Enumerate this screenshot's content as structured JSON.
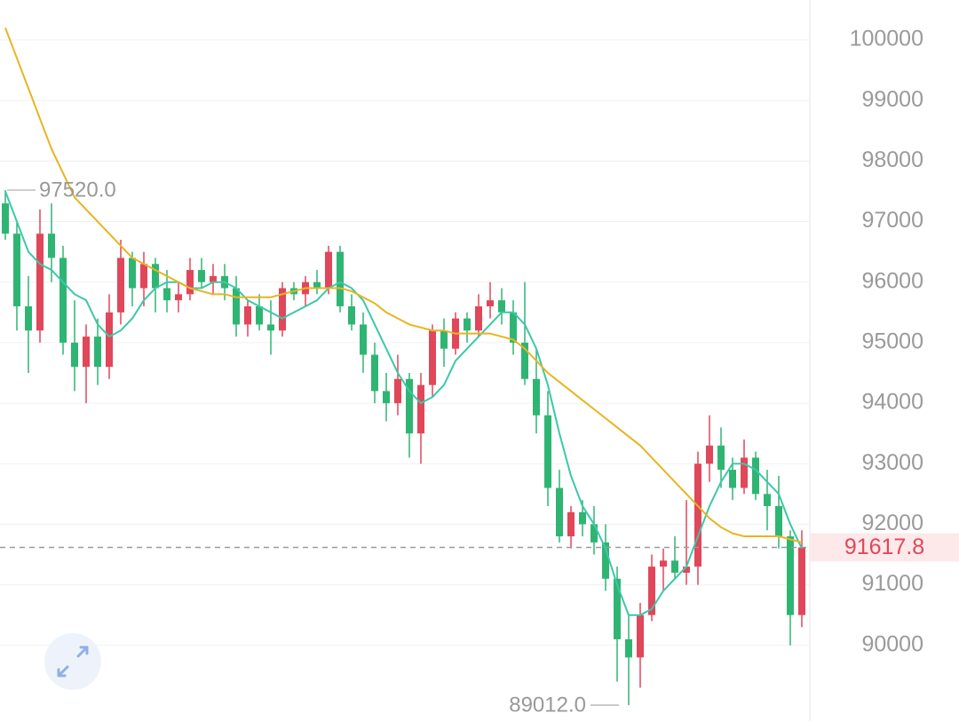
{
  "chart_data": {
    "type": "candlestick",
    "ylim": [
      88750,
      100660
    ],
    "yticks": [
      90000,
      91000,
      92000,
      93000,
      94000,
      95000,
      96000,
      97000,
      98000,
      99000,
      100000
    ],
    "grid": true,
    "up_color": "#e0475a",
    "down_color": "#2fb573",
    "candles": [
      {
        "open": 97300,
        "high": 97520,
        "low": 96700,
        "close": 96800
      },
      {
        "open": 96800,
        "high": 97000,
        "low": 95200,
        "close": 95600
      },
      {
        "open": 95600,
        "high": 96100,
        "low": 94500,
        "close": 95200
      },
      {
        "open": 95200,
        "high": 97200,
        "low": 95000,
        "close": 96800
      },
      {
        "open": 96800,
        "high": 97300,
        "low": 96000,
        "close": 96400
      },
      {
        "open": 96400,
        "high": 96600,
        "low": 94800,
        "close": 95000
      },
      {
        "open": 95000,
        "high": 95700,
        "low": 94200,
        "close": 94600
      },
      {
        "open": 94600,
        "high": 95300,
        "low": 94000,
        "close": 95100
      },
      {
        "open": 95100,
        "high": 95400,
        "low": 94300,
        "close": 94600
      },
      {
        "open": 94600,
        "high": 95800,
        "low": 94400,
        "close": 95500
      },
      {
        "open": 95500,
        "high": 96700,
        "low": 95300,
        "close": 96400
      },
      {
        "open": 96400,
        "high": 96500,
        "low": 95600,
        "close": 95900
      },
      {
        "open": 95900,
        "high": 96500,
        "low": 95600,
        "close": 96300
      },
      {
        "open": 96300,
        "high": 96400,
        "low": 95500,
        "close": 95900
      },
      {
        "open": 95900,
        "high": 96200,
        "low": 95500,
        "close": 95700
      },
      {
        "open": 95700,
        "high": 96000,
        "low": 95500,
        "close": 95800
      },
      {
        "open": 95800,
        "high": 96400,
        "low": 95700,
        "close": 96200
      },
      {
        "open": 96200,
        "high": 96400,
        "low": 95900,
        "close": 96000
      },
      {
        "open": 96000,
        "high": 96300,
        "low": 95800,
        "close": 96100
      },
      {
        "open": 96100,
        "high": 96300,
        "low": 95700,
        "close": 95900
      },
      {
        "open": 95900,
        "high": 96100,
        "low": 95100,
        "close": 95300
      },
      {
        "open": 95300,
        "high": 95700,
        "low": 95100,
        "close": 95600
      },
      {
        "open": 95600,
        "high": 95800,
        "low": 95200,
        "close": 95300
      },
      {
        "open": 95300,
        "high": 95700,
        "low": 94800,
        "close": 95200
      },
      {
        "open": 95200,
        "high": 96000,
        "low": 95100,
        "close": 95900
      },
      {
        "open": 95900,
        "high": 96000,
        "low": 95700,
        "close": 95800
      },
      {
        "open": 95800,
        "high": 96100,
        "low": 95600,
        "close": 96000
      },
      {
        "open": 96000,
        "high": 96200,
        "low": 95800,
        "close": 95900
      },
      {
        "open": 95900,
        "high": 96600,
        "low": 95800,
        "close": 96500
      },
      {
        "open": 96500,
        "high": 96600,
        "low": 95500,
        "close": 95600
      },
      {
        "open": 95600,
        "high": 95800,
        "low": 95200,
        "close": 95300
      },
      {
        "open": 95300,
        "high": 95500,
        "low": 94500,
        "close": 94800
      },
      {
        "open": 94800,
        "high": 95000,
        "low": 94000,
        "close": 94200
      },
      {
        "open": 94200,
        "high": 94500,
        "low": 93700,
        "close": 94000
      },
      {
        "open": 94000,
        "high": 94800,
        "low": 93800,
        "close": 94400
      },
      {
        "open": 94400,
        "high": 94500,
        "low": 93100,
        "close": 93500
      },
      {
        "open": 93500,
        "high": 94500,
        "low": 93000,
        "close": 94300
      },
      {
        "open": 94300,
        "high": 95300,
        "low": 94100,
        "close": 95200
      },
      {
        "open": 95200,
        "high": 95400,
        "low": 94600,
        "close": 94900
      },
      {
        "open": 94900,
        "high": 95500,
        "low": 94800,
        "close": 95400
      },
      {
        "open": 95400,
        "high": 95500,
        "low": 95000,
        "close": 95200
      },
      {
        "open": 95200,
        "high": 95800,
        "low": 95100,
        "close": 95600
      },
      {
        "open": 95600,
        "high": 96000,
        "low": 95400,
        "close": 95700
      },
      {
        "open": 95700,
        "high": 95900,
        "low": 95300,
        "close": 95500
      },
      {
        "open": 95500,
        "high": 95700,
        "low": 94800,
        "close": 95000
      },
      {
        "open": 95000,
        "high": 96000,
        "low": 94300,
        "close": 94400
      },
      {
        "open": 94400,
        "high": 94900,
        "low": 93500,
        "close": 93800
      },
      {
        "open": 93800,
        "high": 94200,
        "low": 92300,
        "close": 92600
      },
      {
        "open": 92600,
        "high": 92900,
        "low": 91700,
        "close": 91800
      },
      {
        "open": 91800,
        "high": 92300,
        "low": 91600,
        "close": 92200
      },
      {
        "open": 92200,
        "high": 92400,
        "low": 91800,
        "close": 92000
      },
      {
        "open": 92000,
        "high": 92300,
        "low": 91500,
        "close": 91700
      },
      {
        "open": 91700,
        "high": 92000,
        "low": 90900,
        "close": 91100
      },
      {
        "open": 91100,
        "high": 91300,
        "low": 89400,
        "close": 90100
      },
      {
        "open": 90100,
        "high": 90500,
        "low": 89012,
        "close": 89800
      },
      {
        "open": 89800,
        "high": 90700,
        "low": 89300,
        "close": 90500
      },
      {
        "open": 90500,
        "high": 91500,
        "low": 90400,
        "close": 91300
      },
      {
        "open": 91300,
        "high": 91600,
        "low": 90900,
        "close": 91400
      },
      {
        "open": 91400,
        "high": 91800,
        "low": 91100,
        "close": 91200
      },
      {
        "open": 91200,
        "high": 92400,
        "low": 91000,
        "close": 91300
      },
      {
        "open": 91300,
        "high": 93200,
        "low": 91000,
        "close": 93000
      },
      {
        "open": 93000,
        "high": 93800,
        "low": 92700,
        "close": 93300
      },
      {
        "open": 93300,
        "high": 93600,
        "low": 92600,
        "close": 92900
      },
      {
        "open": 92900,
        "high": 93100,
        "low": 92400,
        "close": 92600
      },
      {
        "open": 92600,
        "high": 93400,
        "low": 92500,
        "close": 93100
      },
      {
        "open": 93100,
        "high": 93200,
        "low": 92400,
        "close": 92500
      },
      {
        "open": 92500,
        "high": 92900,
        "low": 91900,
        "close": 92300
      },
      {
        "open": 92300,
        "high": 92800,
        "low": 91600,
        "close": 91800
      },
      {
        "open": 91800,
        "high": 91900,
        "low": 90000,
        "close": 90500
      },
      {
        "open": 90500,
        "high": 91900,
        "low": 90300,
        "close": 91617.8
      }
    ],
    "series": [
      {
        "color": "#3cc8a8",
        "values": [
          97500,
          97000,
          96500,
          96300,
          96200,
          96000,
          95800,
          95700,
          95300,
          95100,
          95200,
          95400,
          95700,
          95900,
          96000,
          96000,
          95900,
          95900,
          96000,
          96000,
          95900,
          95700,
          95600,
          95500,
          95400,
          95500,
          95600,
          95700,
          95900,
          96000,
          95900,
          95700,
          95300,
          94900,
          94500,
          94200,
          94000,
          94100,
          94300,
          94700,
          94900,
          95100,
          95300,
          95500,
          95500,
          95300,
          94900,
          94300,
          93500,
          92800,
          92300,
          92000,
          91600,
          91000,
          90500,
          90500,
          90600,
          90900,
          91100,
          91300,
          91800,
          92300,
          92700,
          93000,
          93000,
          92900,
          92700,
          92500,
          92000,
          91600
        ]
      },
      {
        "color": "#e8b520",
        "values": [
          100200,
          99700,
          99200,
          98700,
          98200,
          97800,
          97400,
          97200,
          97000,
          96800,
          96600,
          96400,
          96300,
          96200,
          96100,
          96000,
          95900,
          95850,
          95800,
          95800,
          95750,
          95750,
          95750,
          95750,
          95800,
          95850,
          95900,
          95900,
          95900,
          95900,
          95850,
          95750,
          95650,
          95500,
          95400,
          95300,
          95250,
          95200,
          95200,
          95150,
          95150,
          95150,
          95150,
          95100,
          95050,
          94900,
          94700,
          94500,
          94350,
          94200,
          94050,
          93900,
          93750,
          93600,
          93450,
          93300,
          93100,
          92900,
          92700,
          92500,
          92300,
          92100,
          91950,
          91850,
          91800,
          91800,
          91800,
          91800,
          91750,
          91700
        ]
      }
    ],
    "last_price": 91617.8,
    "high_marker": {
      "value": 97520,
      "label": "97520.0"
    },
    "low_marker": {
      "value": 89012,
      "label": "89012.0"
    }
  }
}
